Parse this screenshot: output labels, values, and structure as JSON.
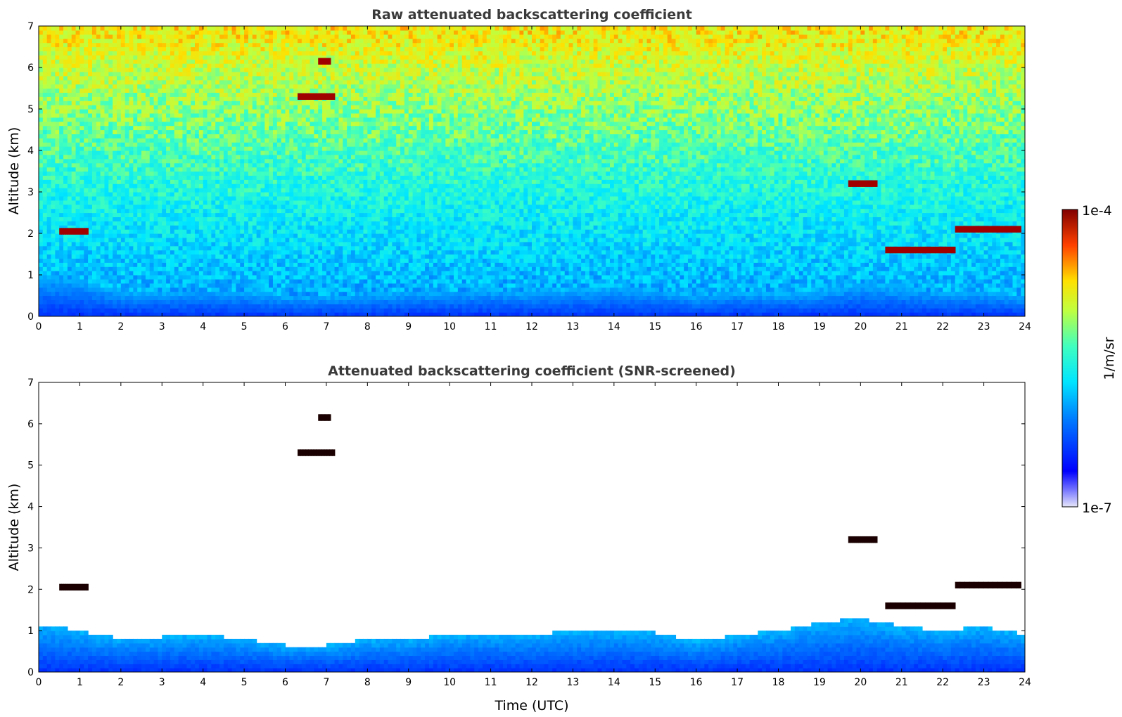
{
  "chart_data": [
    {
      "type": "heatmap",
      "title": "Raw attenuated backscattering coefficient",
      "xlabel": "",
      "ylabel": "Altitude (km)",
      "xlim": [
        0,
        24
      ],
      "ylim": [
        0,
        7
      ],
      "xticks": [
        0,
        1,
        2,
        3,
        4,
        5,
        6,
        7,
        8,
        9,
        10,
        11,
        12,
        13,
        14,
        15,
        16,
        17,
        18,
        19,
        20,
        21,
        22,
        23,
        24
      ],
      "yticks": [
        0,
        1,
        2,
        3,
        4,
        5,
        6,
        7
      ],
      "boundary_layer_top_km": [
        [
          0,
          1.0
        ],
        [
          1,
          0.9
        ],
        [
          2,
          0.6
        ],
        [
          3,
          0.6
        ],
        [
          4,
          0.65
        ],
        [
          5,
          0.6
        ],
        [
          6,
          0.5
        ],
        [
          7,
          0.5
        ],
        [
          8,
          0.55
        ],
        [
          9,
          0.6
        ],
        [
          10,
          0.6
        ],
        [
          11,
          0.65
        ],
        [
          12,
          0.6
        ],
        [
          13,
          0.65
        ],
        [
          14,
          0.7
        ],
        [
          15,
          0.65
        ],
        [
          16,
          0.5
        ],
        [
          17,
          0.6
        ],
        [
          18,
          0.55
        ],
        [
          19,
          0.6
        ],
        [
          20,
          0.8
        ],
        [
          21,
          0.7
        ],
        [
          22,
          0.6
        ],
        [
          23,
          0.6
        ],
        [
          24,
          0.5
        ]
      ],
      "features": [
        {
          "kind": "cloud",
          "t_start": 0.5,
          "t_end": 1.2,
          "alt_km": 2.05
        },
        {
          "kind": "cloud",
          "t_start": 6.3,
          "t_end": 7.2,
          "alt_km": 5.3
        },
        {
          "kind": "cloud",
          "t_start": 6.8,
          "t_end": 7.1,
          "alt_km": 6.15
        },
        {
          "kind": "cloud",
          "t_start": 19.7,
          "t_end": 20.4,
          "alt_km": 3.2
        },
        {
          "kind": "cloud",
          "t_start": 20.6,
          "t_end": 22.3,
          "alt_km": 1.6
        },
        {
          "kind": "cloud",
          "t_start": 22.3,
          "t_end": 23.9,
          "alt_km": 2.1
        }
      ]
    },
    {
      "type": "heatmap",
      "title": "Attenuated backscattering coefficient (SNR-screened)",
      "xlabel": "Time (UTC)",
      "ylabel": "Altitude (km)",
      "xlim": [
        0,
        24
      ],
      "ylim": [
        0,
        7
      ],
      "xticks": [
        0,
        1,
        2,
        3,
        4,
        5,
        6,
        7,
        8,
        9,
        10,
        11,
        12,
        13,
        14,
        15,
        16,
        17,
        18,
        19,
        20,
        21,
        22,
        23,
        24
      ],
      "yticks": [
        0,
        1,
        2,
        3,
        4,
        5,
        6,
        7
      ],
      "boundary_layer_top_km": [
        [
          0,
          1.15
        ],
        [
          1,
          1.0
        ],
        [
          2,
          0.8
        ],
        [
          3,
          0.85
        ],
        [
          4,
          0.9
        ],
        [
          5,
          0.8
        ],
        [
          6,
          0.65
        ],
        [
          7,
          0.65
        ],
        [
          8,
          0.8
        ],
        [
          9,
          0.8
        ],
        [
          10,
          0.9
        ],
        [
          11,
          0.95
        ],
        [
          12,
          0.9
        ],
        [
          13,
          1.0
        ],
        [
          14,
          1.0
        ],
        [
          15,
          0.95
        ],
        [
          16,
          0.75
        ],
        [
          17,
          0.9
        ],
        [
          18,
          1.0
        ],
        [
          19,
          1.2
        ],
        [
          20,
          1.3
        ],
        [
          21,
          1.1
        ],
        [
          22,
          1.0
        ],
        [
          23,
          1.1
        ],
        [
          24,
          0.9
        ]
      ]
    }
  ],
  "colorbar": {
    "max_label": "1e-4",
    "min_label": "1e-7",
    "unit_label": "1/m/sr",
    "colormap": "jet"
  }
}
